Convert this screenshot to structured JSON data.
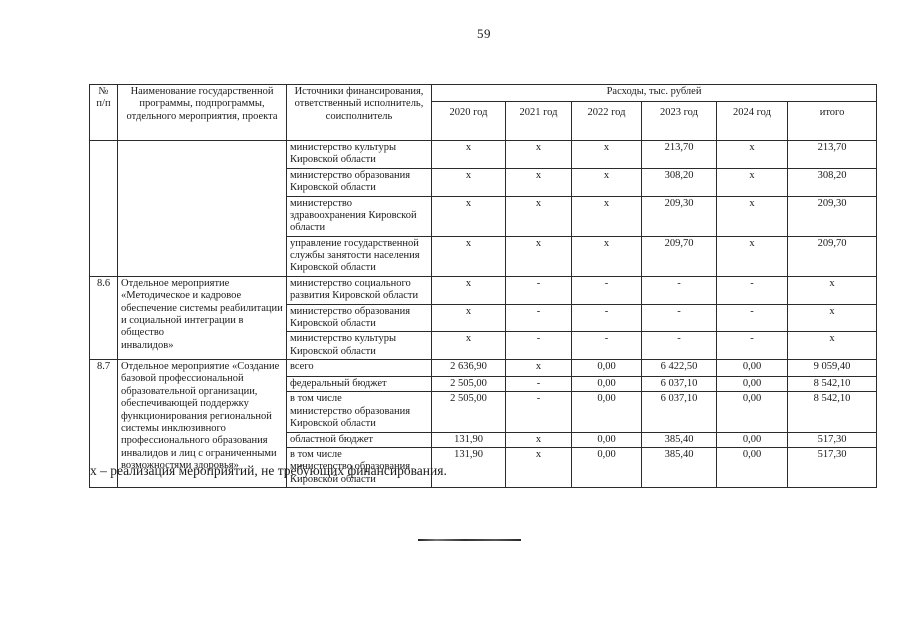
{
  "page": {
    "number": "59",
    "footnote": "х – реализация мероприятий, не требующих финансирования."
  },
  "colors": {
    "paper": "#ffffff",
    "ink": "#1b1b1b",
    "border": "#2b2b2b"
  },
  "table": {
    "headers": {
      "num": "№\nп/п",
      "name": "Наименование государственной\nпрограммы, подпрограммы,\nотдельного мероприятия, проекта",
      "source": "Источники финансирования,\nответственный исполнитель,\nсоисполнитель",
      "expenses": "Расходы, тыс. рублей",
      "years": [
        "2020 год",
        "2021 год",
        "2022 год",
        "2023 год",
        "2024 год",
        "итого"
      ]
    },
    "groups": [
      {
        "num": "",
        "name": "",
        "rows": [
          {
            "source": "министерство культуры\nКировской области",
            "values": [
              "х",
              "х",
              "х",
              "213,70",
              "х",
              "213,70"
            ]
          },
          {
            "source": "министерство образования\nКировской области",
            "values": [
              "х",
              "х",
              "х",
              "308,20",
              "х",
              "308,20"
            ]
          },
          {
            "source": "министерство\nздравоохранения Кировской\nобласти",
            "values": [
              "х",
              "х",
              "х",
              "209,30",
              "х",
              "209,30"
            ]
          },
          {
            "source": "управление государственной\nслужбы занятости населения\nКировской области",
            "values": [
              "х",
              "х",
              "х",
              "209,70",
              "х",
              "209,70"
            ]
          }
        ]
      },
      {
        "num": "8.6",
        "name": "Отдельное мероприятие\n«Методическое и кадровое\nобеспечение системы реабилитации\nи социальной интеграции в общество\nинвалидов»",
        "rows": [
          {
            "source": "министерство социального\nразвития Кировской области",
            "values": [
              "х",
              "-",
              "-",
              "-",
              "-",
              "х"
            ]
          },
          {
            "source": "министерство образования\nКировской области",
            "values": [
              "х",
              "-",
              "-",
              "-",
              "-",
              "х"
            ]
          },
          {
            "source": "министерство культуры\nКировской области",
            "values": [
              "х",
              "-",
              "-",
              "-",
              "-",
              "х"
            ]
          }
        ]
      },
      {
        "num": "8.7",
        "name": "Отдельное мероприятие «Создание\nбазовой профессиональной\nобразовательной организации,\nобеспечивающей поддержку\nфункционирования региональной\nсистемы инклюзивного\nпрофессионального образования\nинвалидов и лиц с ограниченными\nвозможностями здоровья»",
        "rows": [
          {
            "source": "всего",
            "values": [
              "2 636,90",
              "х",
              "0,00",
              "6 422,50",
              "0,00",
              "9 059,40"
            ]
          },
          {
            "source": "федеральный бюджет",
            "values": [
              "2 505,00",
              "-",
              "0,00",
              "6 037,10",
              "0,00",
              "8 542,10"
            ]
          },
          {
            "source": "в том числе\nминистерство образования\nКировской области",
            "values": [
              "2 505,00",
              "-",
              "0,00",
              "6 037,10",
              "0,00",
              "8 542,10"
            ]
          },
          {
            "source": "областной бюджет",
            "values": [
              "131,90",
              "х",
              "0,00",
              "385,40",
              "0,00",
              "517,30"
            ]
          },
          {
            "source": "в том числе\nминистерство образования\nКировской области",
            "values": [
              "131,90",
              "х",
              "0,00",
              "385,40",
              "0,00",
              "517,30"
            ]
          }
        ]
      }
    ]
  }
}
